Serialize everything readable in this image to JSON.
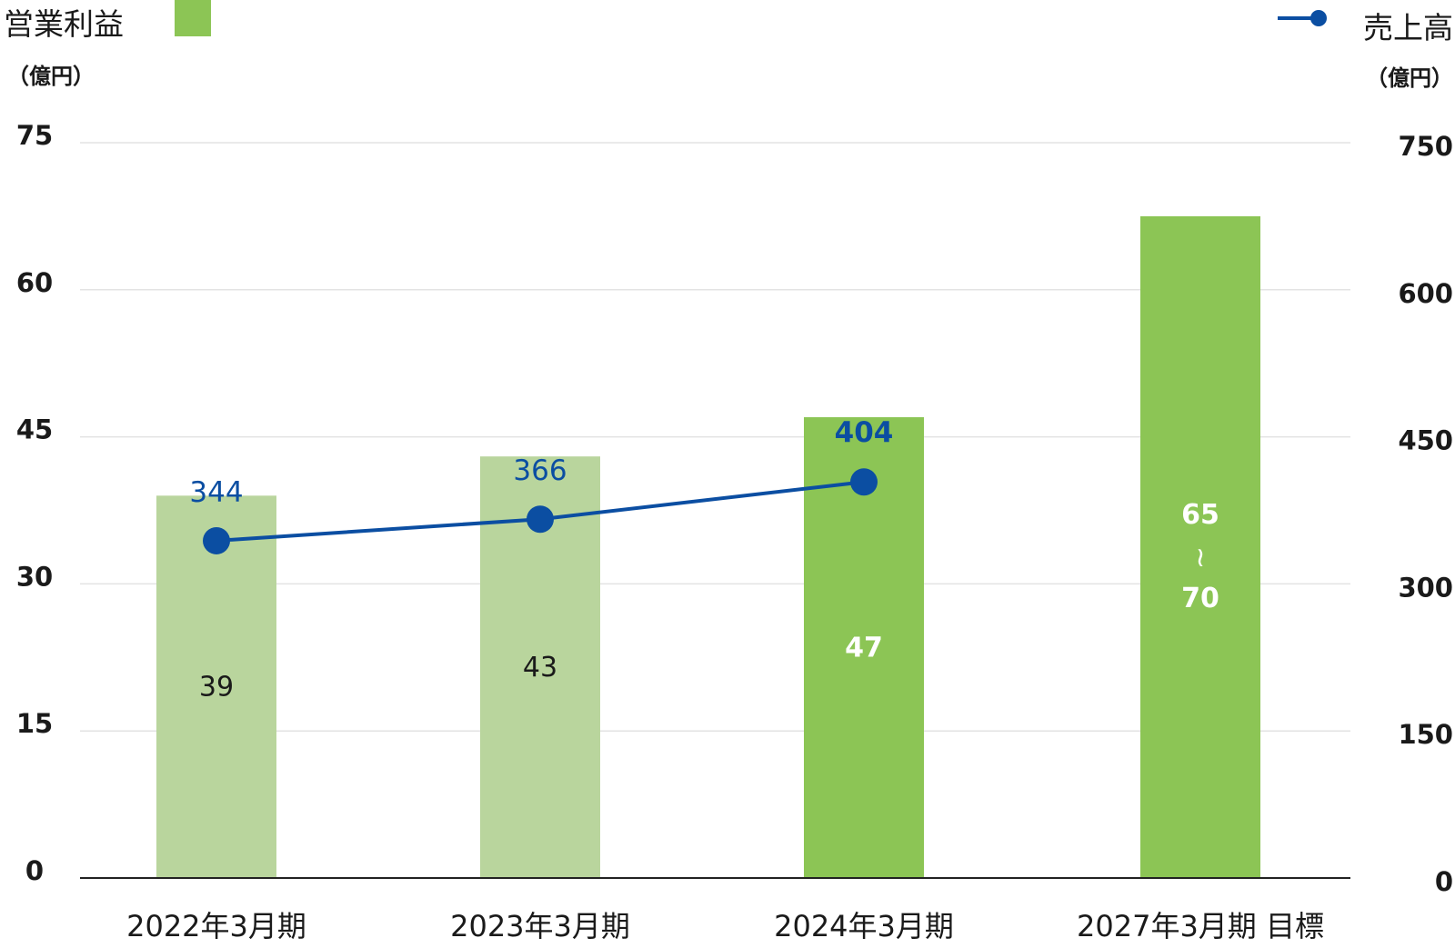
{
  "legend": {
    "left_label": "営業利益",
    "right_label": "売上高"
  },
  "units": {
    "left": "（億円）",
    "right": "（億円）"
  },
  "colors": {
    "bar_light": "#b9d59d",
    "bar_dark": "#8cc555",
    "line": "#0b4ea2",
    "grid": "#e3e3e3",
    "axis": "#222222"
  },
  "chart_data": {
    "type": "bar",
    "categories": [
      "2022年3月期",
      "2023年3月期",
      "2024年3月期",
      "2027年3月期 目標"
    ],
    "series": [
      {
        "name": "営業利益",
        "axis": "left",
        "values": [
          39,
          43,
          47,
          67.5
        ],
        "labels": [
          "39",
          "43",
          "47",
          "65〜70"
        ],
        "range": [
          null,
          null,
          null,
          [
            65,
            70
          ]
        ],
        "colors": [
          "#b9d59d",
          "#b9d59d",
          "#8cc555",
          "#8cc555"
        ]
      },
      {
        "name": "売上高",
        "axis": "right",
        "type": "line",
        "values": [
          344,
          366,
          404,
          null
        ],
        "labels": [
          "344",
          "366",
          "404",
          ""
        ]
      }
    ],
    "y_left": {
      "ylim": [
        0,
        75
      ],
      "ticks": [
        0,
        15,
        30,
        45,
        60,
        75
      ]
    },
    "y_right": {
      "ylim": [
        0,
        750
      ],
      "ticks": [
        0,
        150,
        300,
        450,
        600,
        750
      ]
    },
    "grid": true,
    "legend_position": "top"
  }
}
